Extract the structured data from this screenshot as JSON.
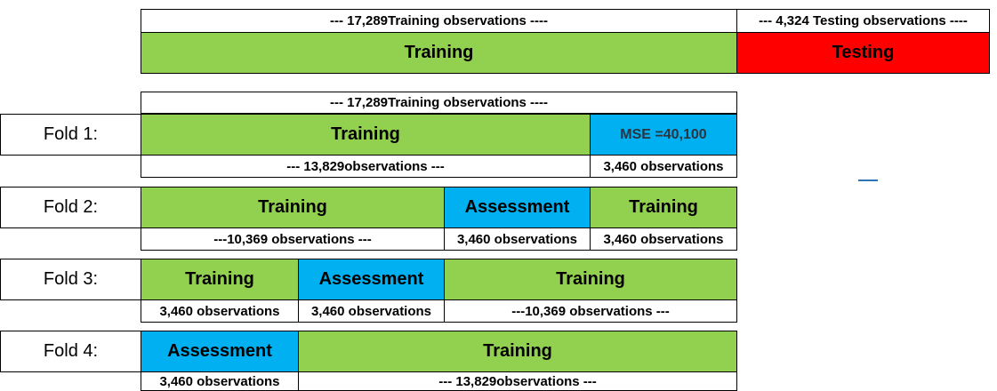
{
  "top": {
    "training_obs": "--- 17,289Training observations ----",
    "testing_obs": "--- 4,324 Testing observations ----",
    "training_label": "Training",
    "testing_label": "Testing"
  },
  "cv_header": "--- 17,289Training observations ----",
  "folds": [
    {
      "label": "Fold 1:",
      "blocks": [
        "Training",
        "MSE =40,100"
      ],
      "counts": [
        "--- 13,829observations ---",
        "3,460 observations"
      ]
    },
    {
      "label": "Fold 2:",
      "blocks": [
        "Training",
        "Assessment",
        "Training"
      ],
      "counts": [
        "---10,369 observations ---",
        "3,460 observations",
        "3,460 observations"
      ]
    },
    {
      "label": "Fold 3:",
      "blocks": [
        "Training",
        "Assessment",
        "Training"
      ],
      "counts": [
        "3,460 observations",
        "3,460 observations",
        "---10,369 observations ---"
      ]
    },
    {
      "label": "Fold 4:",
      "blocks": [
        "Assessment",
        "Training"
      ],
      "counts": [
        "3,460 observations",
        "--- 13,829observations ---"
      ]
    }
  ],
  "colors": {
    "training": "#92d050",
    "testing": "#ff0000",
    "assessment": "#00b0f0"
  }
}
